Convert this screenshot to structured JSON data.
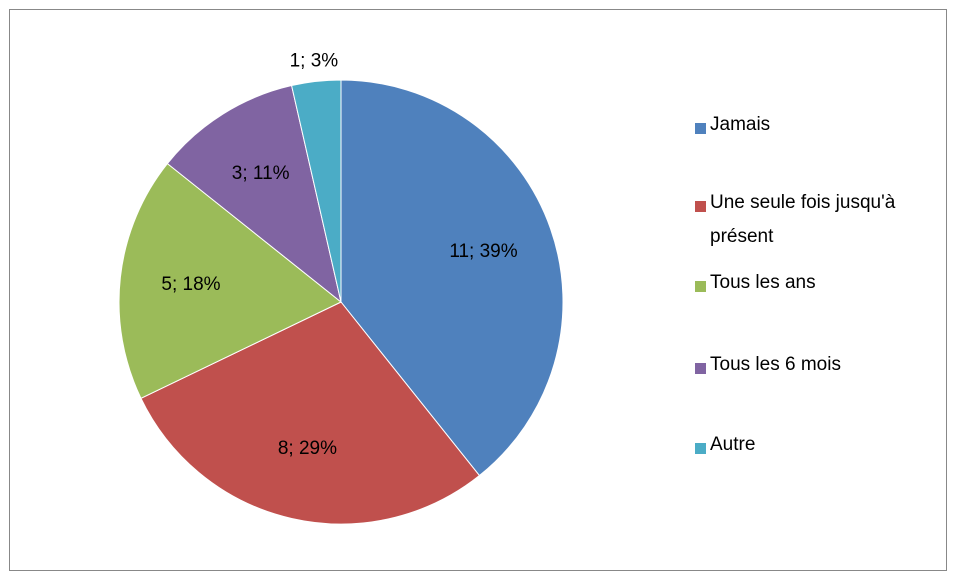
{
  "chart_data": {
    "type": "pie",
    "categories": [
      "Jamais",
      "Une seule fois jusqu'à présent",
      "Tous les ans",
      "Tous les 6 mois",
      "Autre"
    ],
    "values": [
      11,
      8,
      5,
      3,
      1
    ],
    "value_labels": [
      "11; 39%",
      "8; 29%",
      "5; 18%",
      "3; 11%",
      "1; 3%"
    ],
    "colors": [
      "#4f81bd",
      "#c0504d",
      "#9bbb59",
      "#8064a2",
      "#4bacc6"
    ],
    "legend": "right"
  }
}
